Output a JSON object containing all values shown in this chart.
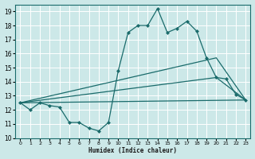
{
  "xlabel": "Humidex (Indice chaleur)",
  "xlim": [
    -0.5,
    23.5
  ],
  "ylim": [
    10,
    19.5
  ],
  "yticks": [
    10,
    11,
    12,
    13,
    14,
    15,
    16,
    17,
    18,
    19
  ],
  "xticks": [
    0,
    1,
    2,
    3,
    4,
    5,
    6,
    7,
    8,
    9,
    10,
    11,
    12,
    13,
    14,
    15,
    16,
    17,
    18,
    19,
    20,
    21,
    22,
    23
  ],
  "background_color": "#cce8e8",
  "line_color": "#1a6b6b",
  "grid_color": "#ffffff",
  "line1_x": [
    0,
    1,
    2,
    3,
    4,
    5,
    6,
    7,
    8,
    9,
    10,
    11,
    12,
    13,
    14,
    15,
    16,
    17,
    18,
    19,
    20,
    21,
    22,
    23
  ],
  "line1_y": [
    12.5,
    12.0,
    12.5,
    12.3,
    12.2,
    11.1,
    11.1,
    10.7,
    10.5,
    11.1,
    14.8,
    17.5,
    18.0,
    18.0,
    19.2,
    17.5,
    17.8,
    18.3,
    17.6,
    15.7,
    14.3,
    14.2,
    13.1,
    12.7
  ],
  "line2_x": [
    0,
    23
  ],
  "line2_y": [
    12.5,
    12.7
  ],
  "line3_x": [
    0,
    20,
    23
  ],
  "line3_y": [
    12.5,
    15.7,
    12.7
  ],
  "line4_x": [
    0,
    20,
    23
  ],
  "line4_y": [
    12.5,
    14.3,
    12.7
  ]
}
